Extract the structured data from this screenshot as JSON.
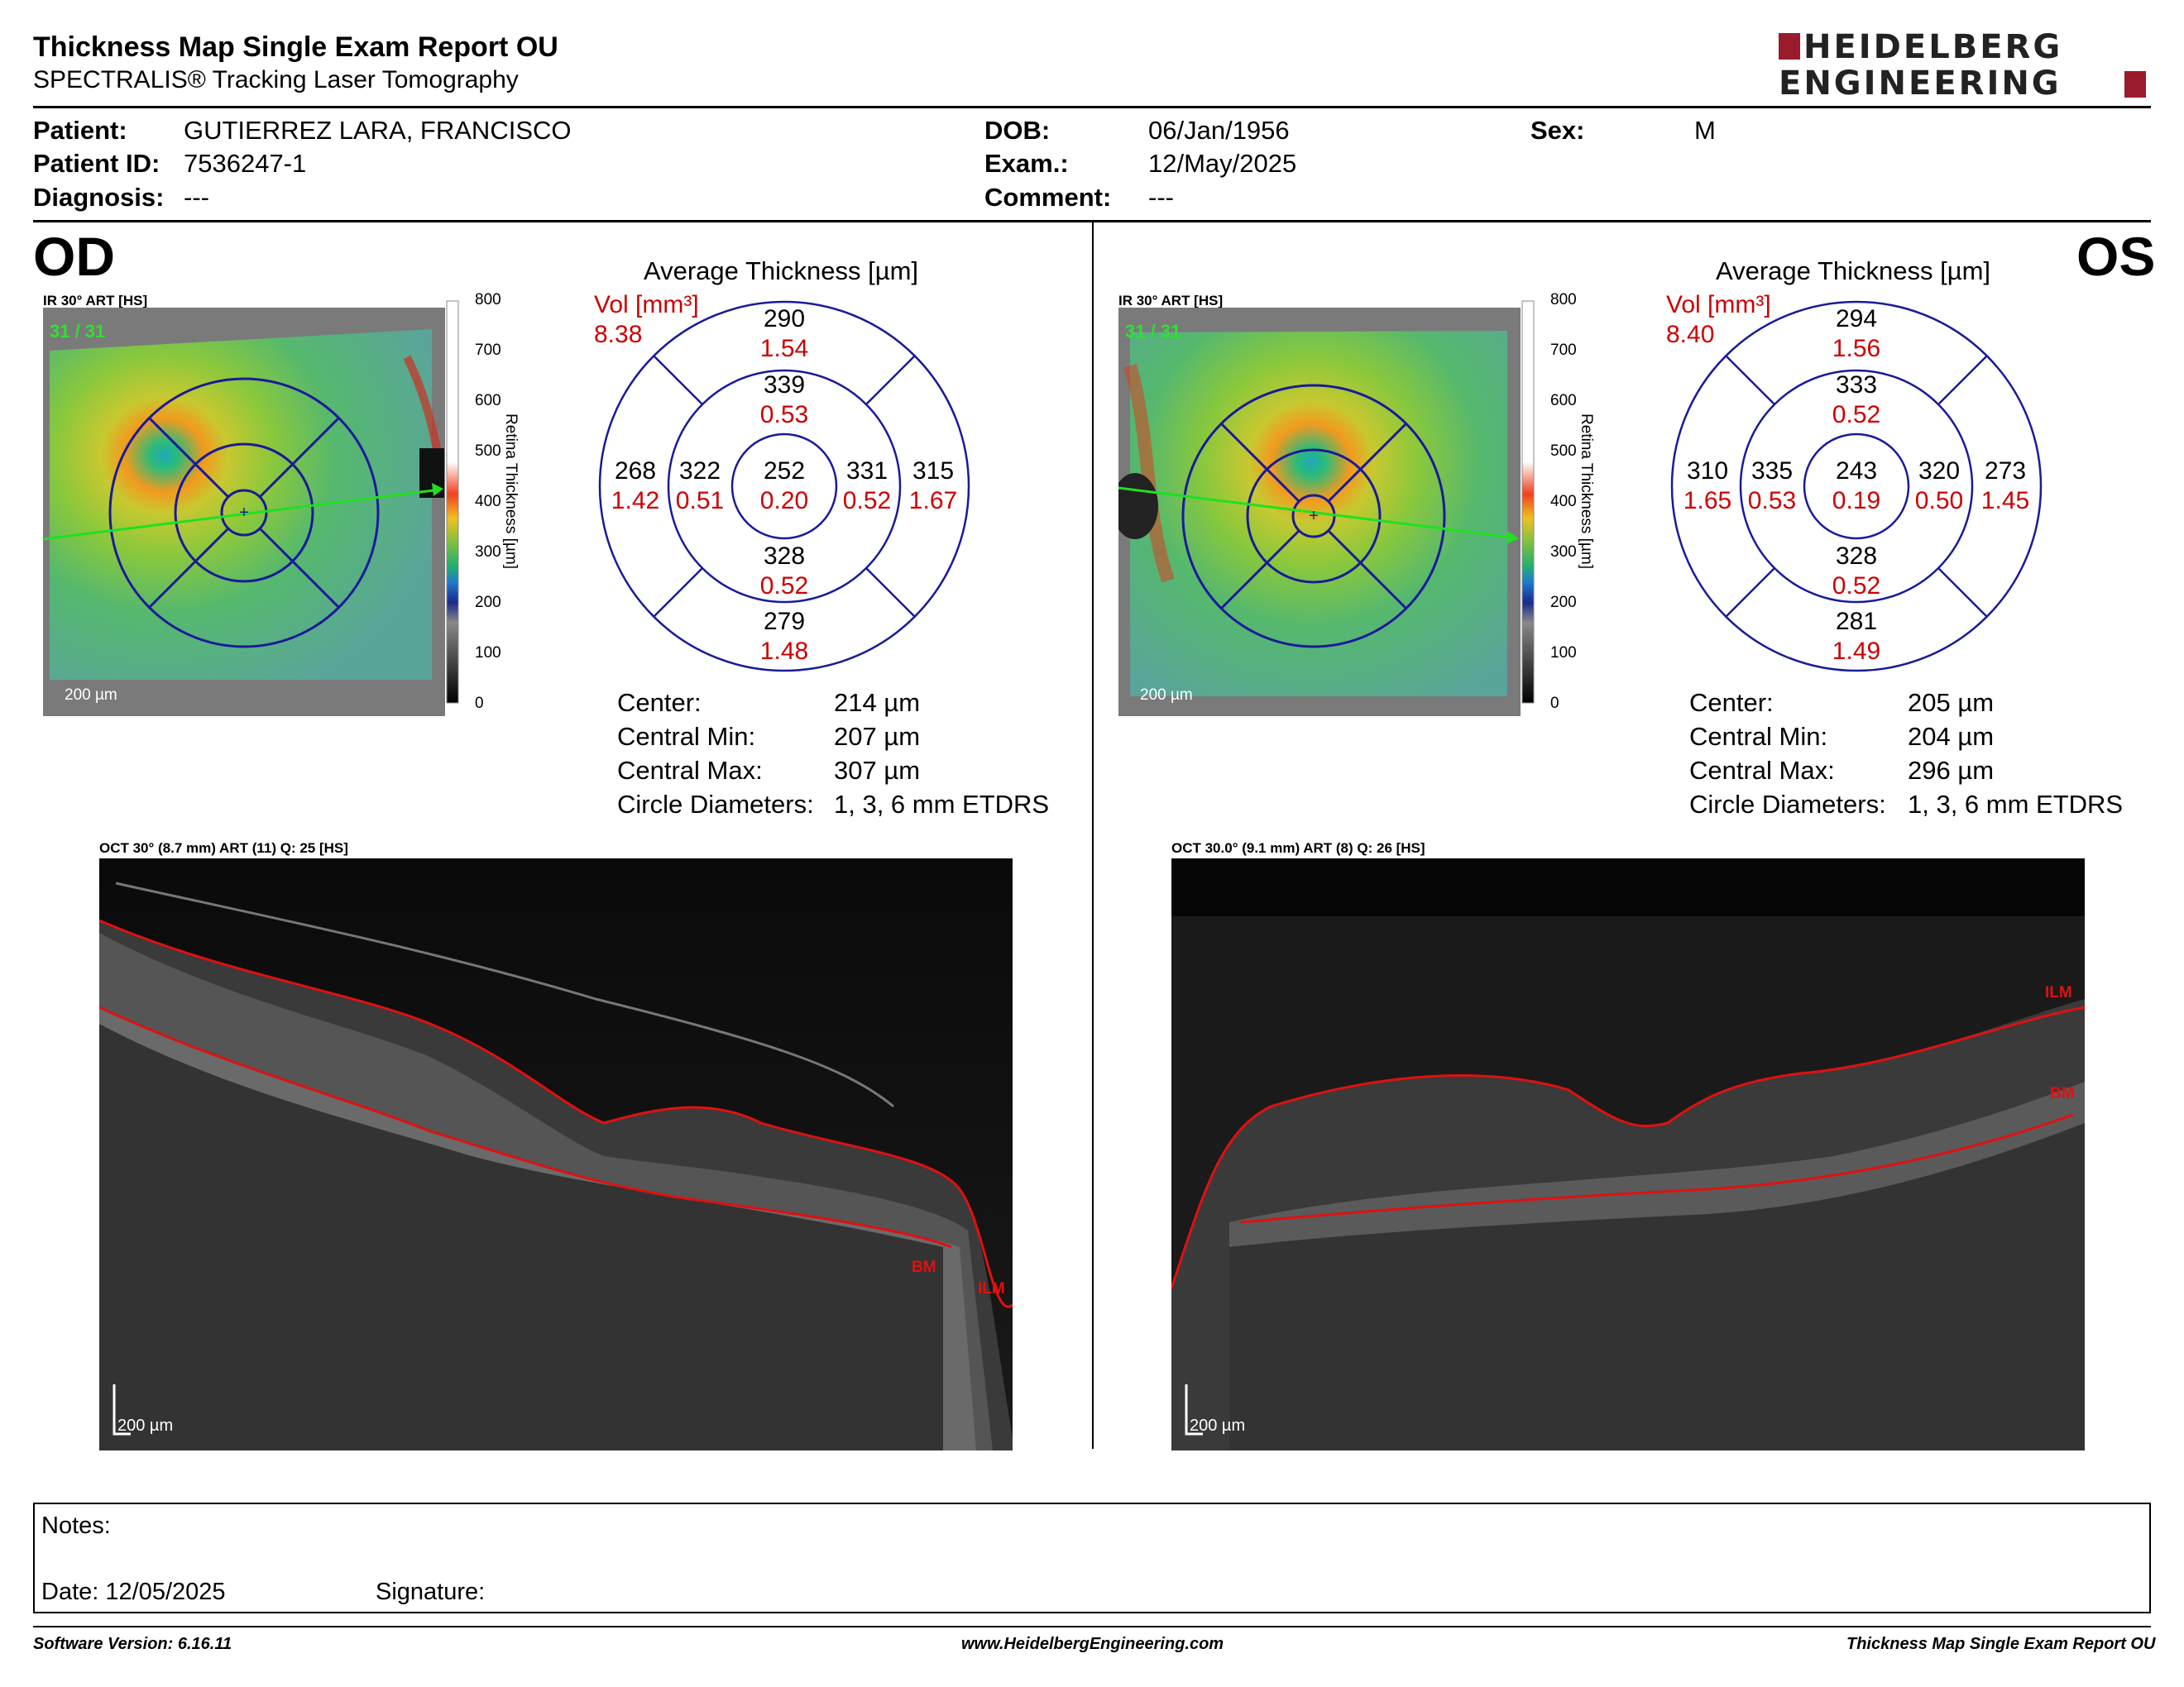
{
  "header": {
    "title": "Thickness Map Single Exam Report OU",
    "subtitle": "SPECTRALIS® Tracking Laser Tomography",
    "logo_line1": "HEIDELBERG",
    "logo_line2": "ENGINEERING",
    "brand_color": "#9a1b2b"
  },
  "patient": {
    "patient_label": "Patient:",
    "patient_value": "GUTIERREZ LARA, FRANCISCO",
    "id_label": "Patient ID:",
    "id_value": "7536247-1",
    "diagnosis_label": "Diagnosis:",
    "diagnosis_value": "---",
    "dob_label": "DOB:",
    "dob_value": "06/Jan/1956",
    "exam_label": "Exam.:",
    "exam_value": "12/May/2025",
    "comment_label": "Comment:",
    "comment_value": "---",
    "sex_label": "Sex:",
    "sex_value": "M"
  },
  "od": {
    "eye": "OD",
    "ir_label": "IR 30° ART [HS]",
    "frame_count": "31 / 31",
    "scale_label": "200 µm",
    "colorbar_ticks": [
      "800",
      "700",
      "600",
      "500",
      "400",
      "300",
      "200",
      "100",
      "0"
    ],
    "colorbar_title": "Retina Thickness [µm]",
    "avg_title": "Average Thickness [µm]",
    "vol_label": "Vol [mm³]",
    "vol_total": "8.38",
    "sectors": {
      "center": {
        "thk": "252",
        "vol": "0.20"
      },
      "inner_sup": {
        "thk": "339",
        "vol": "0.53"
      },
      "inner_inf": {
        "thk": "328",
        "vol": "0.52"
      },
      "inner_left": {
        "thk": "322",
        "vol": "0.51"
      },
      "inner_right": {
        "thk": "331",
        "vol": "0.52"
      },
      "outer_sup": {
        "thk": "290",
        "vol": "1.54"
      },
      "outer_inf": {
        "thk": "279",
        "vol": "1.48"
      },
      "outer_left": {
        "thk": "268",
        "vol": "1.42"
      },
      "outer_right": {
        "thk": "315",
        "vol": "1.67"
      }
    },
    "stats": {
      "center_label": "Center:",
      "center_value": "214 µm",
      "min_label": "Central Min:",
      "min_value": "207 µm",
      "max_label": "Central Max:",
      "max_value": "307 µm",
      "diam_label": "Circle Diameters:",
      "diam_value": "1, 3, 6 mm ETDRS"
    },
    "oct_label": "OCT 30° (8.7 mm) ART (11) Q: 25 [HS]",
    "oct_scale": "200 µm",
    "ilm_label": "ILM",
    "bm_label": "BM"
  },
  "os": {
    "eye": "OS",
    "ir_label": "IR 30° ART [HS]",
    "frame_count": "31 / 31",
    "scale_label": "200 µm",
    "colorbar_ticks": [
      "800",
      "700",
      "600",
      "500",
      "400",
      "300",
      "200",
      "100",
      "0"
    ],
    "colorbar_title": "Retina Thickness [µm]",
    "avg_title": "Average Thickness [µm]",
    "vol_label": "Vol [mm³]",
    "vol_total": "8.40",
    "sectors": {
      "center": {
        "thk": "243",
        "vol": "0.19"
      },
      "inner_sup": {
        "thk": "333",
        "vol": "0.52"
      },
      "inner_inf": {
        "thk": "328",
        "vol": "0.52"
      },
      "inner_left": {
        "thk": "335",
        "vol": "0.53"
      },
      "inner_right": {
        "thk": "320",
        "vol": "0.50"
      },
      "outer_sup": {
        "thk": "294",
        "vol": "1.56"
      },
      "outer_inf": {
        "thk": "281",
        "vol": "1.49"
      },
      "outer_left": {
        "thk": "310",
        "vol": "1.65"
      },
      "outer_right": {
        "thk": "273",
        "vol": "1.45"
      }
    },
    "stats": {
      "center_label": "Center:",
      "center_value": "205 µm",
      "min_label": "Central Min:",
      "min_value": "204 µm",
      "max_label": "Central Max:",
      "max_value": "296 µm",
      "diam_label": "Circle Diameters:",
      "diam_value": "1, 3, 6 mm ETDRS"
    },
    "oct_label": "OCT 30.0° (9.1 mm) ART (8) Q: 26 [HS]",
    "oct_scale": "200 µm",
    "ilm_label": "ILM",
    "bm_label": "BM"
  },
  "notes": {
    "notes_label": "Notes:",
    "date_label": "Date: 12/05/2025",
    "signature_label": "Signature:"
  },
  "footer": {
    "software": "Software Version: 6.16.11",
    "website": "www.HeidelbergEngineering.com",
    "report_name": "Thickness Map Single Exam Report OU"
  }
}
